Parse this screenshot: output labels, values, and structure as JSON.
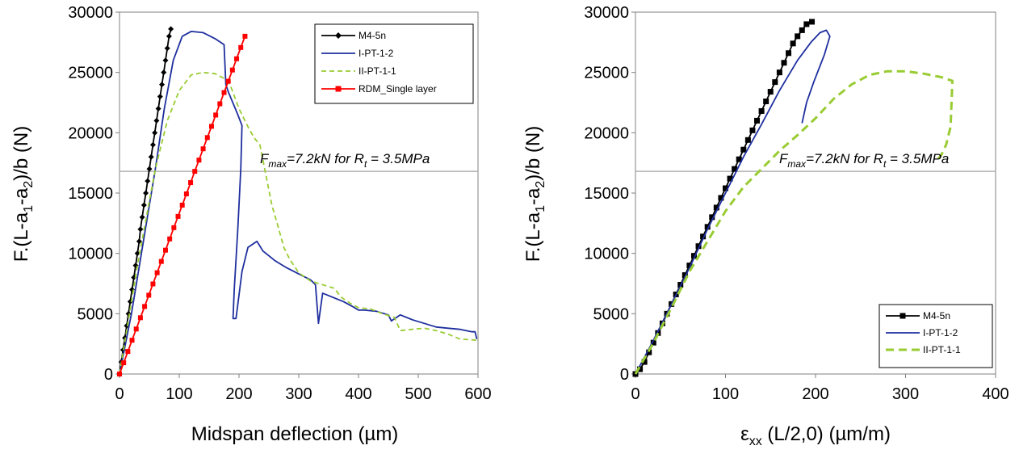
{
  "chart_data": [
    {
      "type": "line",
      "xlabel": "Midspan deflection (µm)",
      "ylabel": "F.(L-a1-a2)/b (N)",
      "xlim": [
        0,
        600
      ],
      "ylim": [
        0,
        30000
      ],
      "xticks": [
        "0",
        "100",
        "200",
        "300",
        "400",
        "500",
        "600"
      ],
      "yticks": [
        "0",
        "5000",
        "10000",
        "15000",
        "20000",
        "25000",
        "30000"
      ],
      "grid": false,
      "legend_position": "top-right",
      "annotation": {
        "text_prefix": "F",
        "text_sub": "max",
        "text_middle": "=7.2kN for R",
        "text_sub2": "t",
        "text_suffix": " = 3.5MPa",
        "y": 16800
      },
      "series": [
        {
          "name": "M4-5n",
          "color": "#000000",
          "marker": "diamond",
          "dash": "solid",
          "points": [
            [
              0,
              0
            ],
            [
              3,
              1000
            ],
            [
              6,
              2000
            ],
            [
              9,
              3000
            ],
            [
              12,
              4000
            ],
            [
              15,
              5000
            ],
            [
              18,
              6000
            ],
            [
              21,
              7000
            ],
            [
              24,
              8000
            ],
            [
              27,
              9000
            ],
            [
              30,
              10000
            ],
            [
              33,
              11000
            ],
            [
              35,
              12000
            ],
            [
              38,
              13000
            ],
            [
              41,
              14000
            ],
            [
              44,
              15000
            ],
            [
              47,
              16000
            ],
            [
              50,
              17000
            ],
            [
              53,
              18000
            ],
            [
              56,
              19000
            ],
            [
              59,
              20000
            ],
            [
              62,
              21000
            ],
            [
              65,
              22000
            ],
            [
              68,
              23000
            ],
            [
              71,
              24000
            ],
            [
              74,
              25000
            ],
            [
              77,
              26000
            ],
            [
              80,
              27000
            ],
            [
              83,
              28000
            ],
            [
              86,
              28600
            ]
          ]
        },
        {
          "name": "I-PT-1-2",
          "color": "#1f2f9e",
          "marker": "none",
          "dash": "solid",
          "points": [
            [
              0,
              0
            ],
            [
              20,
              5000
            ],
            [
              40,
              11000
            ],
            [
              60,
              17000
            ],
            [
              75,
              22000
            ],
            [
              90,
              26000
            ],
            [
              105,
              28000
            ],
            [
              120,
              28400
            ],
            [
              140,
              28300
            ],
            [
              160,
              27800
            ],
            [
              175,
              27300
            ],
            [
              178,
              24000
            ],
            [
              182,
              23400
            ],
            [
              198,
              21500
            ],
            [
              205,
              20600
            ],
            [
              203,
              17000
            ],
            [
              198,
              12000
            ],
            [
              192,
              7000
            ],
            [
              190,
              4600
            ],
            [
              195,
              4600
            ],
            [
              205,
              8500
            ],
            [
              215,
              10500
            ],
            [
              230,
              11000
            ],
            [
              240,
              10200
            ],
            [
              260,
              9400
            ],
            [
              280,
              8800
            ],
            [
              300,
              8300
            ],
            [
              320,
              7800
            ],
            [
              328,
              7400
            ],
            [
              333,
              4200
            ],
            [
              340,
              6700
            ],
            [
              355,
              6400
            ],
            [
              375,
              6000
            ],
            [
              390,
              5600
            ],
            [
              400,
              5300
            ],
            [
              410,
              5300
            ],
            [
              430,
              5200
            ],
            [
              450,
              4900
            ],
            [
              455,
              4400
            ],
            [
              470,
              4900
            ],
            [
              490,
              4500
            ],
            [
              510,
              4200
            ],
            [
              530,
              3900
            ],
            [
              550,
              3800
            ],
            [
              570,
              3700
            ],
            [
              590,
              3500
            ],
            [
              595,
              3500
            ],
            [
              598,
              2900
            ]
          ]
        },
        {
          "name": "II-PT-1-1",
          "color": "#99cc33",
          "marker": "none",
          "dash": "6,4",
          "points": [
            [
              0,
              0
            ],
            [
              30,
              9000
            ],
            [
              60,
              17000
            ],
            [
              80,
              21000
            ],
            [
              100,
              23500
            ],
            [
              120,
              24800
            ],
            [
              140,
              25000
            ],
            [
              160,
              24900
            ],
            [
              175,
              24500
            ],
            [
              185,
              24000
            ],
            [
              200,
              22000
            ],
            [
              215,
              20500
            ],
            [
              225,
              19600
            ],
            [
              235,
              19000
            ],
            [
              245,
              16500
            ],
            [
              255,
              14000
            ],
            [
              265,
              12300
            ],
            [
              275,
              10500
            ],
            [
              285,
              9500
            ],
            [
              300,
              8400
            ],
            [
              320,
              7700
            ],
            [
              340,
              7400
            ],
            [
              360,
              7100
            ],
            [
              370,
              6400
            ],
            [
              385,
              5900
            ],
            [
              400,
              5500
            ],
            [
              420,
              5400
            ],
            [
              440,
              5000
            ],
            [
              460,
              4700
            ],
            [
              470,
              3600
            ],
            [
              490,
              3700
            ],
            [
              510,
              3800
            ],
            [
              530,
              3600
            ],
            [
              550,
              3300
            ],
            [
              570,
              2900
            ],
            [
              600,
              2800
            ]
          ]
        },
        {
          "name": "RDM_Single layer",
          "color": "#ff0000",
          "marker": "square",
          "dash": "solid",
          "points": [
            [
              0,
              0
            ],
            [
              7,
              933
            ],
            [
              14,
              1867
            ],
            [
              21,
              2800
            ],
            [
              28,
              3733
            ],
            [
              35,
              4667
            ],
            [
              42,
              5600
            ],
            [
              49,
              6533
            ],
            [
              56,
              7467
            ],
            [
              63,
              8400
            ],
            [
              70,
              9333
            ],
            [
              77,
              10267
            ],
            [
              84,
              11200
            ],
            [
              91,
              12133
            ],
            [
              98,
              13067
            ],
            [
              105,
              14000
            ],
            [
              112,
              14933
            ],
            [
              119,
              15867
            ],
            [
              126,
              16800
            ],
            [
              133,
              17733
            ],
            [
              140,
              18667
            ],
            [
              147,
              19600
            ],
            [
              154,
              20533
            ],
            [
              161,
              21467
            ],
            [
              168,
              22400
            ],
            [
              175,
              23333
            ],
            [
              182,
              24267
            ],
            [
              189,
              25200
            ],
            [
              196,
              26133
            ],
            [
              203,
              27067
            ],
            [
              210,
              28000
            ]
          ]
        }
      ]
    },
    {
      "type": "line",
      "xlabel_symbol": "ε",
      "xlabel_sub": "xx",
      "xlabel_rest": " (L/2,0) (µm/m)",
      "ylabel": "F.(L-a1-a2)/b  (N)",
      "xlim": [
        0,
        400
      ],
      "ylim": [
        0,
        30000
      ],
      "xticks": [
        "0",
        "100",
        "200",
        "300",
        "400"
      ],
      "yticks": [
        "0",
        "5000",
        "10000",
        "15000",
        "20000",
        "25000",
        "30000"
      ],
      "grid": false,
      "legend_position": "bottom-right",
      "annotation": {
        "text_prefix": "F",
        "text_sub": "max",
        "text_middle": "=7.2kN for R",
        "text_sub2": "t",
        "text_suffix": " = 3.5MPa",
        "y": 16800
      },
      "series": [
        {
          "name": "M4-5n",
          "color": "#000000",
          "marker": "square",
          "dash": "solid",
          "points": [
            [
              0,
              0
            ],
            [
              5,
              400
            ],
            [
              10,
              1000
            ],
            [
              15,
              1800
            ],
            [
              20,
              2600
            ],
            [
              25,
              3400
            ],
            [
              30,
              4200
            ],
            [
              35,
              5000
            ],
            [
              40,
              5800
            ],
            [
              45,
              6600
            ],
            [
              50,
              7400
            ],
            [
              55,
              8200
            ],
            [
              60,
              9000
            ],
            [
              65,
              9800
            ],
            [
              70,
              10600
            ],
            [
              75,
              11400
            ],
            [
              80,
              12200
            ],
            [
              85,
              13000
            ],
            [
              90,
              13800
            ],
            [
              95,
              14600
            ],
            [
              100,
              15400
            ],
            [
              105,
              16200
            ],
            [
              110,
              17000
            ],
            [
              115,
              17800
            ],
            [
              120,
              18600
            ],
            [
              125,
              19400
            ],
            [
              130,
              20200
            ],
            [
              135,
              21000
            ],
            [
              140,
              21800
            ],
            [
              145,
              22600
            ],
            [
              150,
              23400
            ],
            [
              155,
              24200
            ],
            [
              160,
              25000
            ],
            [
              165,
              25800
            ],
            [
              170,
              26600
            ],
            [
              175,
              27400
            ],
            [
              180,
              28000
            ],
            [
              185,
              28500
            ],
            [
              190,
              29000
            ],
            [
              196,
              29200
            ]
          ]
        },
        {
          "name": "I-PT-1-2",
          "color": "#1f2f9e",
          "marker": "none",
          "dash": "solid",
          "points": [
            [
              0,
              0
            ],
            [
              20,
              2800
            ],
            [
              40,
              5800
            ],
            [
              60,
              8800
            ],
            [
              80,
              12000
            ],
            [
              100,
              15000
            ],
            [
              120,
              18000
            ],
            [
              140,
              20700
            ],
            [
              160,
              23500
            ],
            [
              180,
              26000
            ],
            [
              195,
              27500
            ],
            [
              205,
              28300
            ],
            [
              212,
              28500
            ],
            [
              216,
              28000
            ],
            [
              210,
              26500
            ],
            [
              198,
              24200
            ],
            [
              190,
              22500
            ],
            [
              185,
              20800
            ]
          ]
        },
        {
          "name": "II-PT-1-1",
          "color": "#99cc33",
          "marker": "none",
          "dash": "10,6",
          "points": [
            [
              0,
              0
            ],
            [
              20,
              2600
            ],
            [
              40,
              5500
            ],
            [
              60,
              8500
            ],
            [
              80,
              11000
            ],
            [
              100,
              13500
            ],
            [
              120,
              15500
            ],
            [
              140,
              17000
            ],
            [
              160,
              18500
            ],
            [
              180,
              19800
            ],
            [
              200,
              21200
            ],
            [
              220,
              22800
            ],
            [
              240,
              24000
            ],
            [
              260,
              24800
            ],
            [
              280,
              25100
            ],
            [
              300,
              25100
            ],
            [
              320,
              24900
            ],
            [
              340,
              24600
            ],
            [
              352,
              24300
            ],
            [
              350,
              20500
            ],
            [
              345,
              19000
            ],
            [
              340,
              18200
            ],
            [
              336,
              17800
            ]
          ]
        }
      ]
    }
  ]
}
